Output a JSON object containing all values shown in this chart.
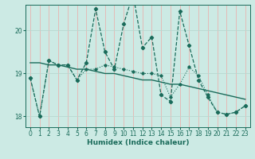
{
  "xlabel": "Humidex (Indice chaleur)",
  "background_color": "#cceae4",
  "plot_bg_color": "#cceae4",
  "grid_color_v": "#e8b4b0",
  "grid_color_h": "#b8d8d0",
  "line_color": "#1a6b5a",
  "xlim": [
    -0.5,
    23.5
  ],
  "ylim": [
    17.75,
    20.6
  ],
  "yticks": [
    18,
    19,
    20
  ],
  "xticks": [
    0,
    1,
    2,
    3,
    4,
    5,
    6,
    7,
    8,
    9,
    10,
    11,
    12,
    13,
    14,
    15,
    16,
    17,
    18,
    19,
    20,
    21,
    22,
    23
  ],
  "series_dashed_x": [
    0,
    1,
    2,
    3,
    4,
    5,
    6,
    7,
    8,
    9,
    10,
    11,
    12,
    13,
    14,
    15,
    16,
    17,
    18,
    19,
    20,
    21,
    22,
    23
  ],
  "series_dashed_y": [
    18.9,
    18.0,
    19.3,
    19.2,
    19.2,
    18.85,
    19.25,
    20.5,
    19.5,
    19.1,
    20.15,
    20.85,
    19.6,
    19.85,
    18.5,
    18.35,
    20.45,
    19.65,
    18.85,
    18.45,
    18.1,
    18.05,
    18.1,
    18.25
  ],
  "series_solid_x": [
    0,
    1,
    2,
    3,
    4,
    5,
    6,
    7,
    8,
    9,
    10,
    11,
    12,
    13,
    14,
    15,
    16,
    17,
    18,
    19,
    20,
    21,
    22,
    23
  ],
  "series_solid_y": [
    19.25,
    19.25,
    19.2,
    19.2,
    19.15,
    19.1,
    19.1,
    19.05,
    19.0,
    19.0,
    18.95,
    18.9,
    18.85,
    18.85,
    18.8,
    18.75,
    18.75,
    18.7,
    18.65,
    18.6,
    18.55,
    18.5,
    18.45,
    18.4
  ],
  "series_dotted_x": [
    0,
    1,
    2,
    3,
    4,
    5,
    6,
    7,
    8,
    9,
    10,
    11,
    12,
    13,
    14,
    15,
    16,
    17,
    18,
    19,
    20,
    21,
    22,
    23
  ],
  "series_dotted_y": [
    18.9,
    18.0,
    19.3,
    19.2,
    19.2,
    18.85,
    19.1,
    19.1,
    19.2,
    19.15,
    19.1,
    19.05,
    19.0,
    19.0,
    18.95,
    18.45,
    18.75,
    19.15,
    18.95,
    18.5,
    18.1,
    18.05,
    18.1,
    18.25
  ]
}
